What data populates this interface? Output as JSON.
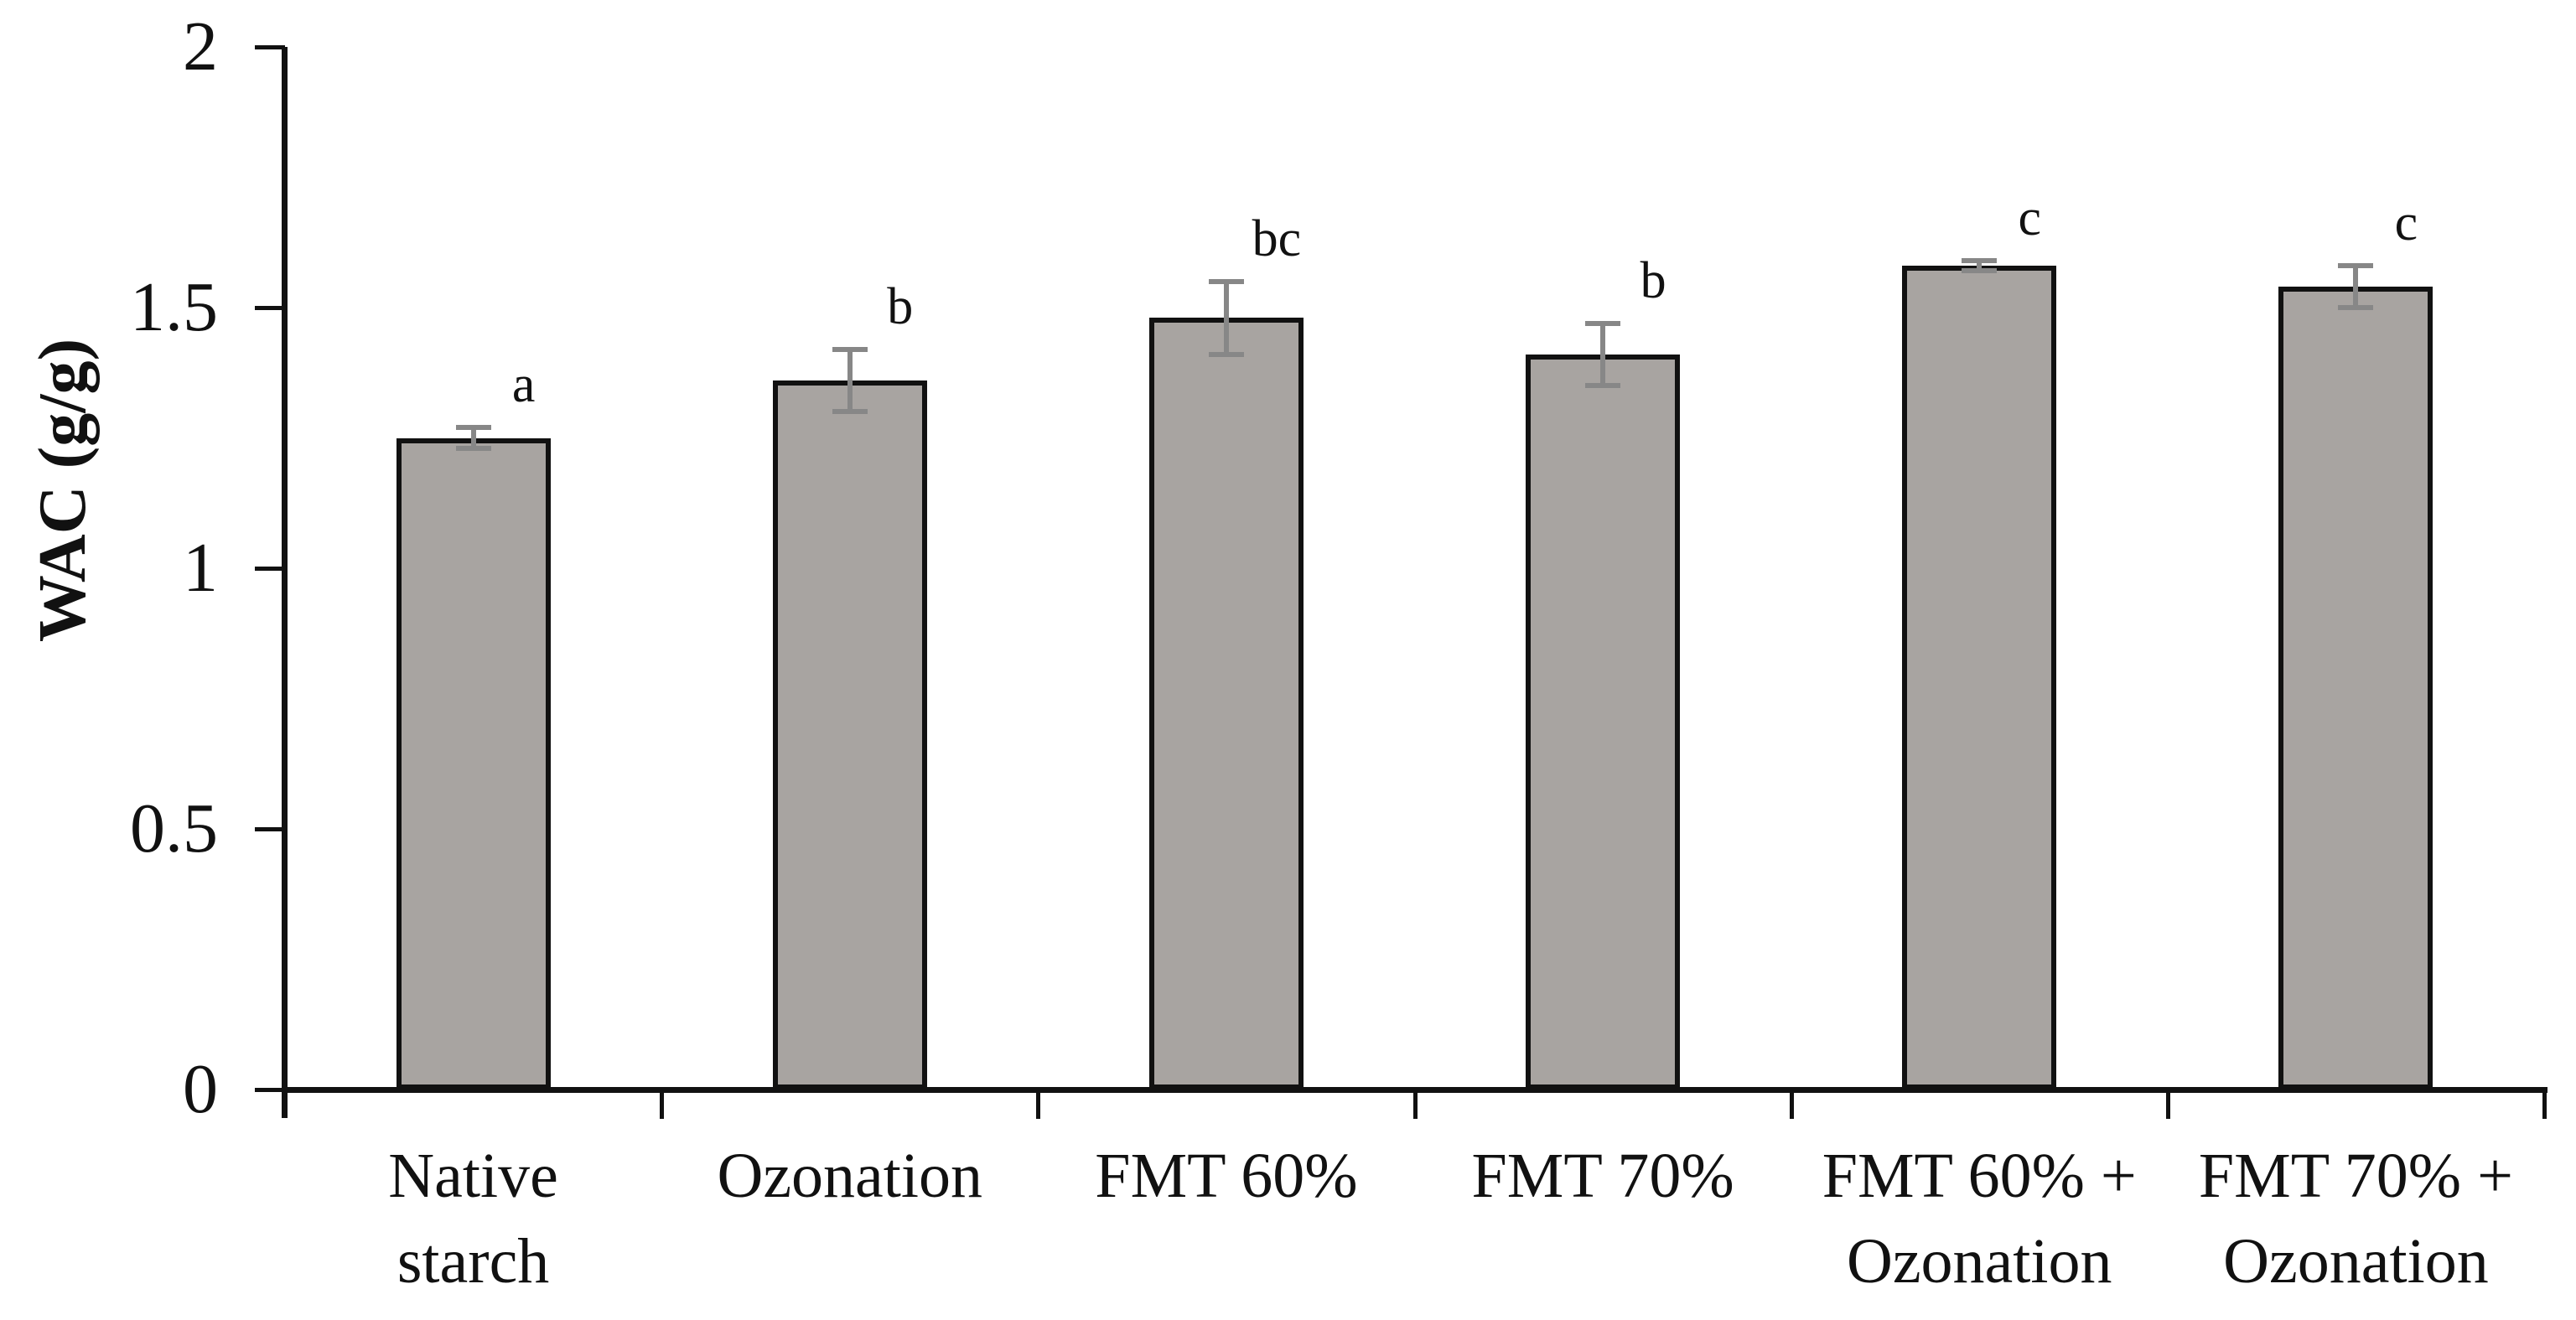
{
  "chart_data": {
    "type": "bar",
    "title": "",
    "ylabel": "WAC (g/g)",
    "xlabel": "",
    "ylim": [
      0,
      2
    ],
    "yticks": [
      0,
      0.5,
      1,
      1.5,
      2
    ],
    "ytick_labels": [
      "0",
      "0.5",
      "1",
      "1.5",
      "2"
    ],
    "categories": [
      "Native starch",
      "Ozonation",
      "FMT 60%",
      "FMT 70%",
      "FMT 60% + Ozonation",
      "FMT 70% + Ozonation"
    ],
    "category_lines": [
      [
        "Native",
        "starch"
      ],
      [
        "Ozonation"
      ],
      [
        "FMT 60%"
      ],
      [
        "FMT 70%"
      ],
      [
        "FMT 60% +",
        "Ozonation"
      ],
      [
        "FMT 70% +",
        "Ozonation"
      ]
    ],
    "values": [
      1.25,
      1.36,
      1.48,
      1.41,
      1.58,
      1.54
    ],
    "error_bars": [
      0.02,
      0.06,
      0.07,
      0.06,
      0.01,
      0.04
    ],
    "significance_letters": [
      "a",
      "b",
      "bc",
      "b",
      "c",
      "c"
    ],
    "legend": "none",
    "grid": false,
    "colors": {
      "bar_fill": "#a8a4a1",
      "bar_border": "#111111",
      "error_bar": "#878787",
      "axis": "#111111",
      "text": "#111111",
      "background": "#ffffff"
    }
  }
}
